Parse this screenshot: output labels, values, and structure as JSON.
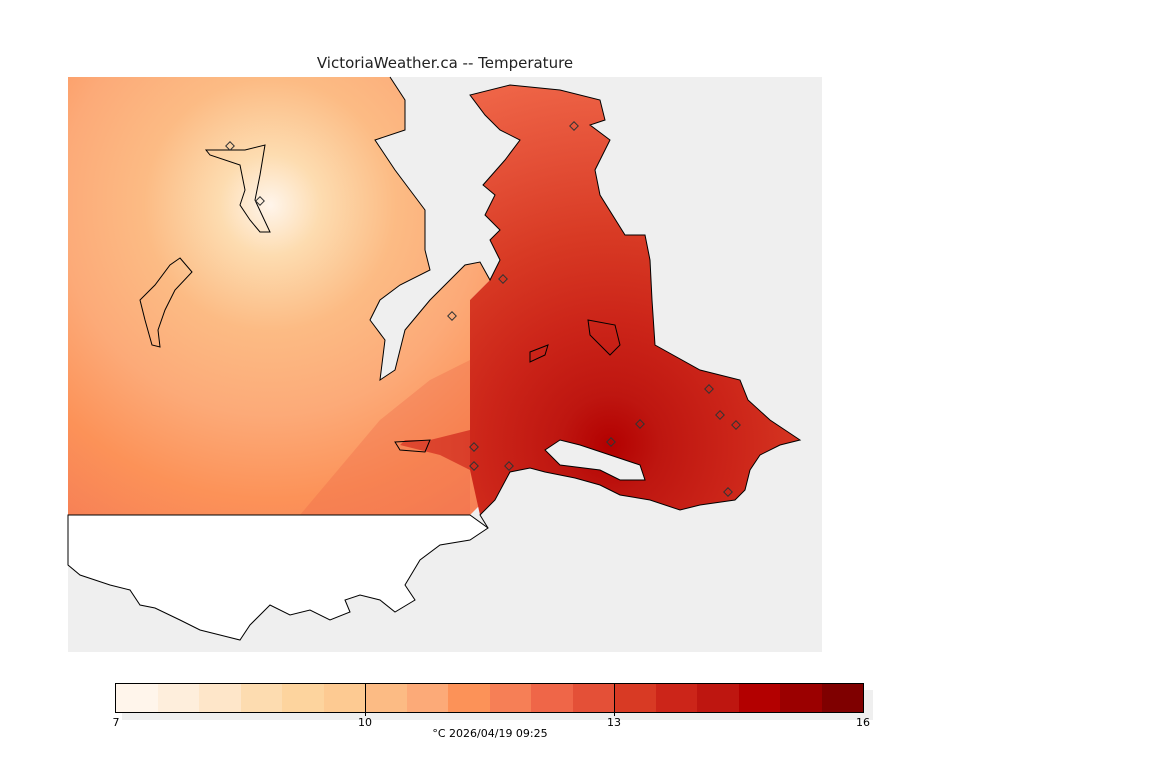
{
  "title": "VictoriaWeather.ca -- Temperature",
  "colorbar": {
    "min": 7,
    "max": 16,
    "step": 0.5,
    "ticks": [
      "7",
      "10",
      "13",
      "16"
    ],
    "colors": [
      "#fff5eb",
      "#feeedc",
      "#fee6c9",
      "#fddcb0",
      "#fdd49e",
      "#fdca92",
      "#fcbb84",
      "#fcaa78",
      "#fc9258",
      "#f67f56",
      "#ef6648",
      "#e45037",
      "#d83a24",
      "#cc2519",
      "#be1610",
      "#b30000",
      "#9b0000",
      "#7f0000"
    ]
  },
  "caption": "°C  2026/04/19 09:25"
}
